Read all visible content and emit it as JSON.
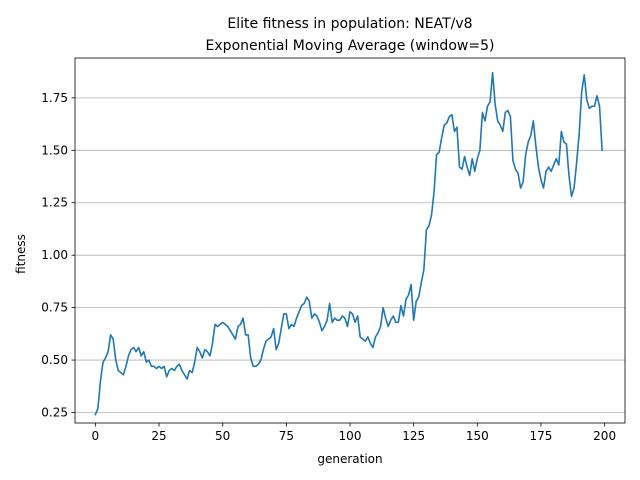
{
  "chart_data": {
    "type": "line",
    "title": "Elite fitness in population: NEAT/v8",
    "subtitle": "Exponential Moving Average (window=5)",
    "xlabel": "generation",
    "ylabel": "fitness",
    "xlim": [
      -8,
      208
    ],
    "ylim": [
      0.2,
      1.94
    ],
    "xticks": [
      0,
      25,
      50,
      75,
      100,
      125,
      150,
      175,
      200
    ],
    "yticks": [
      0.25,
      0.5,
      0.75,
      1.0,
      1.25,
      1.5,
      1.75
    ],
    "ytick_labels": [
      "0.25",
      "0.50",
      "0.75",
      "1.00",
      "1.25",
      "1.50",
      "1.75"
    ],
    "grid": "y",
    "line_color": "#1f77b4",
    "series": [
      {
        "values": [
          0.24,
          0.27,
          0.4,
          0.49,
          0.51,
          0.54,
          0.62,
          0.6,
          0.5,
          0.45,
          0.44,
          0.43,
          0.47,
          0.52,
          0.55,
          0.56,
          0.54,
          0.56,
          0.52,
          0.54,
          0.49,
          0.5,
          0.47,
          0.47,
          0.46,
          0.47,
          0.46,
          0.47,
          0.42,
          0.45,
          0.46,
          0.45,
          0.47,
          0.48,
          0.45,
          0.43,
          0.41,
          0.45,
          0.44,
          0.49,
          0.56,
          0.54,
          0.51,
          0.55,
          0.54,
          0.52,
          0.58,
          0.67,
          0.66,
          0.67,
          0.68,
          0.67,
          0.66,
          0.64,
          0.62,
          0.6,
          0.66,
          0.67,
          0.7,
          0.62,
          0.62,
          0.51,
          0.47,
          0.47,
          0.48,
          0.5,
          0.55,
          0.59,
          0.6,
          0.61,
          0.65,
          0.55,
          0.58,
          0.65,
          0.72,
          0.72,
          0.65,
          0.67,
          0.66,
          0.7,
          0.73,
          0.76,
          0.77,
          0.8,
          0.78,
          0.7,
          0.72,
          0.71,
          0.68,
          0.64,
          0.66,
          0.69,
          0.77,
          0.68,
          0.7,
          0.69,
          0.69,
          0.71,
          0.7,
          0.66,
          0.73,
          0.72,
          0.68,
          0.71,
          0.61,
          0.6,
          0.59,
          0.61,
          0.58,
          0.56,
          0.61,
          0.63,
          0.66,
          0.75,
          0.7,
          0.66,
          0.69,
          0.71,
          0.68,
          0.68,
          0.76,
          0.71,
          0.79,
          0.81,
          0.86,
          0.69,
          0.78,
          0.8,
          0.87,
          0.93,
          1.12,
          1.14,
          1.19,
          1.3,
          1.48,
          1.49,
          1.56,
          1.62,
          1.63,
          1.66,
          1.67,
          1.59,
          1.61,
          1.42,
          1.41,
          1.47,
          1.42,
          1.38,
          1.46,
          1.4,
          1.46,
          1.5,
          1.68,
          1.64,
          1.71,
          1.73,
          1.87,
          1.72,
          1.64,
          1.62,
          1.59,
          1.68,
          1.69,
          1.66,
          1.45,
          1.41,
          1.39,
          1.32,
          1.35,
          1.48,
          1.54,
          1.57,
          1.64,
          1.52,
          1.42,
          1.36,
          1.32,
          1.4,
          1.42,
          1.4,
          1.43,
          1.46,
          1.43,
          1.59,
          1.54,
          1.53,
          1.38,
          1.28,
          1.32,
          1.44,
          1.58,
          1.78,
          1.86,
          1.74,
          1.7,
          1.71,
          1.71,
          1.76,
          1.71,
          1.5
        ]
      }
    ]
  }
}
